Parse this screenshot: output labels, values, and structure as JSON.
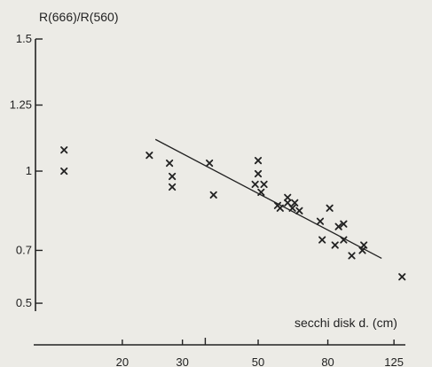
{
  "chart_data": {
    "type": "scatter",
    "title": "",
    "ylabel": "R(666)/R(560)",
    "xlabel": "secchi disk d. (cm)",
    "x_scale": "log",
    "xlim": [
      11,
      135
    ],
    "ylim": [
      0.47,
      1.5
    ],
    "x_ticks": [
      {
        "value": 20,
        "label": "20"
      },
      {
        "value": 30,
        "label": "30"
      },
      {
        "value": 50,
        "label": "50"
      },
      {
        "value": 80,
        "label": "80"
      },
      {
        "value": 125,
        "label": "125"
      }
    ],
    "x_minor_ticks": [
      35
    ],
    "y_ticks": [
      {
        "value": 1.5,
        "label": "1.5"
      },
      {
        "value": 1.25,
        "label": "1.25"
      },
      {
        "value": 1.0,
        "label": "1"
      },
      {
        "value": 0.7,
        "label": "0.7"
      },
      {
        "value": 0.5,
        "label": "0.5"
      }
    ],
    "grid": false,
    "legend": "none",
    "colors": {
      "points": "#222222",
      "line": "#222222",
      "axes": "#222222"
    },
    "points": [
      {
        "x": 13.5,
        "y": 1.08
      },
      {
        "x": 13.5,
        "y": 1.0
      },
      {
        "x": 24,
        "y": 1.06
      },
      {
        "x": 27.5,
        "y": 1.03
      },
      {
        "x": 28,
        "y": 0.98
      },
      {
        "x": 28,
        "y": 0.94
      },
      {
        "x": 36,
        "y": 1.03
      },
      {
        "x": 37,
        "y": 0.91
      },
      {
        "x": 49,
        "y": 0.95
      },
      {
        "x": 50,
        "y": 1.04
      },
      {
        "x": 50,
        "y": 0.99
      },
      {
        "x": 51,
        "y": 0.92
      },
      {
        "x": 52,
        "y": 0.95
      },
      {
        "x": 57,
        "y": 0.87
      },
      {
        "x": 58,
        "y": 0.86
      },
      {
        "x": 61,
        "y": 0.9
      },
      {
        "x": 61,
        "y": 0.88
      },
      {
        "x": 63,
        "y": 0.86
      },
      {
        "x": 64,
        "y": 0.88
      },
      {
        "x": 66,
        "y": 0.85
      },
      {
        "x": 76,
        "y": 0.81
      },
      {
        "x": 77,
        "y": 0.74
      },
      {
        "x": 81,
        "y": 0.86
      },
      {
        "x": 84,
        "y": 0.72
      },
      {
        "x": 86,
        "y": 0.79
      },
      {
        "x": 89,
        "y": 0.8
      },
      {
        "x": 89,
        "y": 0.74
      },
      {
        "x": 94,
        "y": 0.68
      },
      {
        "x": 101,
        "y": 0.7
      },
      {
        "x": 102,
        "y": 0.72
      },
      {
        "x": 132,
        "y": 0.6
      }
    ],
    "regression_line": {
      "x": [
        25,
        115
      ],
      "y": [
        1.12,
        0.67
      ]
    }
  }
}
